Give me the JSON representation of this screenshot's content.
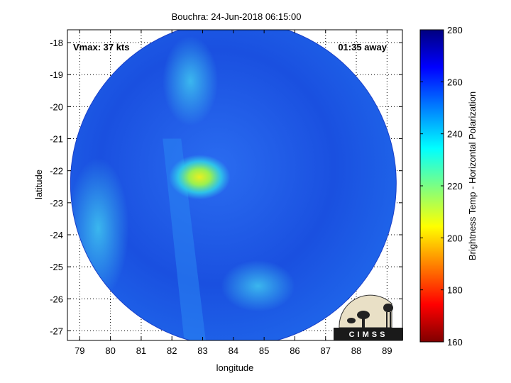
{
  "chart_data": {
    "type": "heatmap",
    "title": "Bouchra: 24-Jun-2018 06:15:00",
    "xlabel": "longitude",
    "ylabel": "latitude",
    "xlim": [
      78.6,
      89.5
    ],
    "ylim": [
      -27.3,
      -17.6
    ],
    "x_ticks": [
      79,
      80,
      81,
      82,
      83,
      84,
      85,
      86,
      87,
      88,
      89
    ],
    "y_ticks": [
      -18,
      -19,
      -20,
      -21,
      -22,
      -23,
      -24,
      -25,
      -26,
      -27
    ],
    "grid": "dotted",
    "annotations": {
      "vmax": "Vmax: 37 kts",
      "time_away": "01:35 away"
    },
    "storm_center": {
      "lon": 82.9,
      "lat": -22.2
    },
    "swath": {
      "center_lon": 84.0,
      "center_lat": -22.4,
      "radius_deg": 5.3
    },
    "colorbar": {
      "label": "Brightness Temp - Horizontal Polarization",
      "min": 160,
      "max": 280,
      "ticks": [
        280,
        260,
        240,
        220,
        200,
        180,
        160
      ]
    }
  },
  "logo": {
    "text": "CIMSS"
  },
  "colors": {
    "background_field": "#1a4fe0",
    "dark_field": "#0d2fb0",
    "warm_core": "#d9f020"
  }
}
